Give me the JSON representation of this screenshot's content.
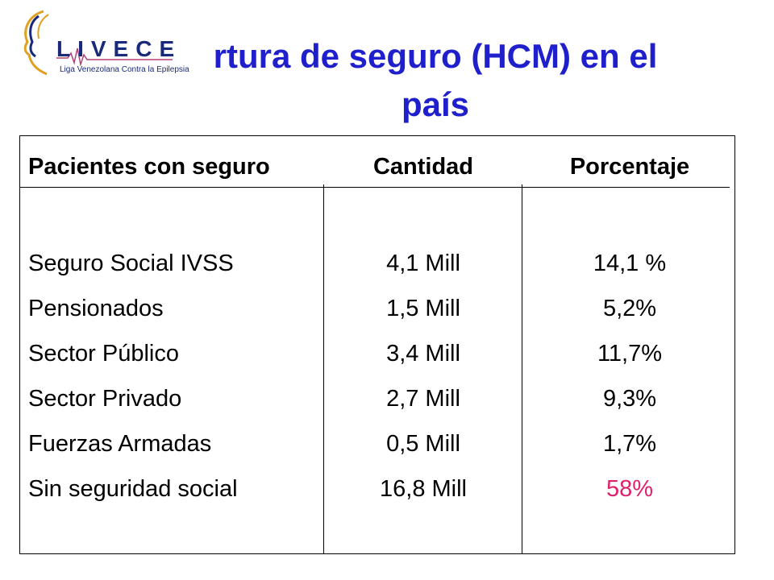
{
  "logo": {
    "name": "LIVECE",
    "subtitle": "Liga Venezolana Contra la Epilepsia"
  },
  "title": {
    "line1": "rtura de seguro (HCM) en el",
    "line2": "país"
  },
  "table": {
    "headers": [
      "Pacientes con seguro",
      "Cantidad",
      "Porcentaje"
    ],
    "rows": [
      {
        "label": "Seguro Social IVSS",
        "cantidad": "4,1 Mill",
        "porcentaje": "14,1 %"
      },
      {
        "label": "Pensionados",
        "cantidad": "1,5 Mill",
        "porcentaje": "5,2%"
      },
      {
        "label": "Sector Público",
        "cantidad": "3,4 Mill",
        "porcentaje": "11,7%"
      },
      {
        "label": "Sector Privado",
        "cantidad": "2,7 Mill",
        "porcentaje": "9,3%"
      },
      {
        "label": "Fuerzas Armadas",
        "cantidad": "0,5 Mill",
        "porcentaje": "1,7%"
      },
      {
        "label": "Sin seguridad social",
        "cantidad": "16,8 Mill",
        "porcentaje": "58%"
      }
    ]
  },
  "colors": {
    "title": "#1f1fcc",
    "highlight": "#e0206a"
  }
}
